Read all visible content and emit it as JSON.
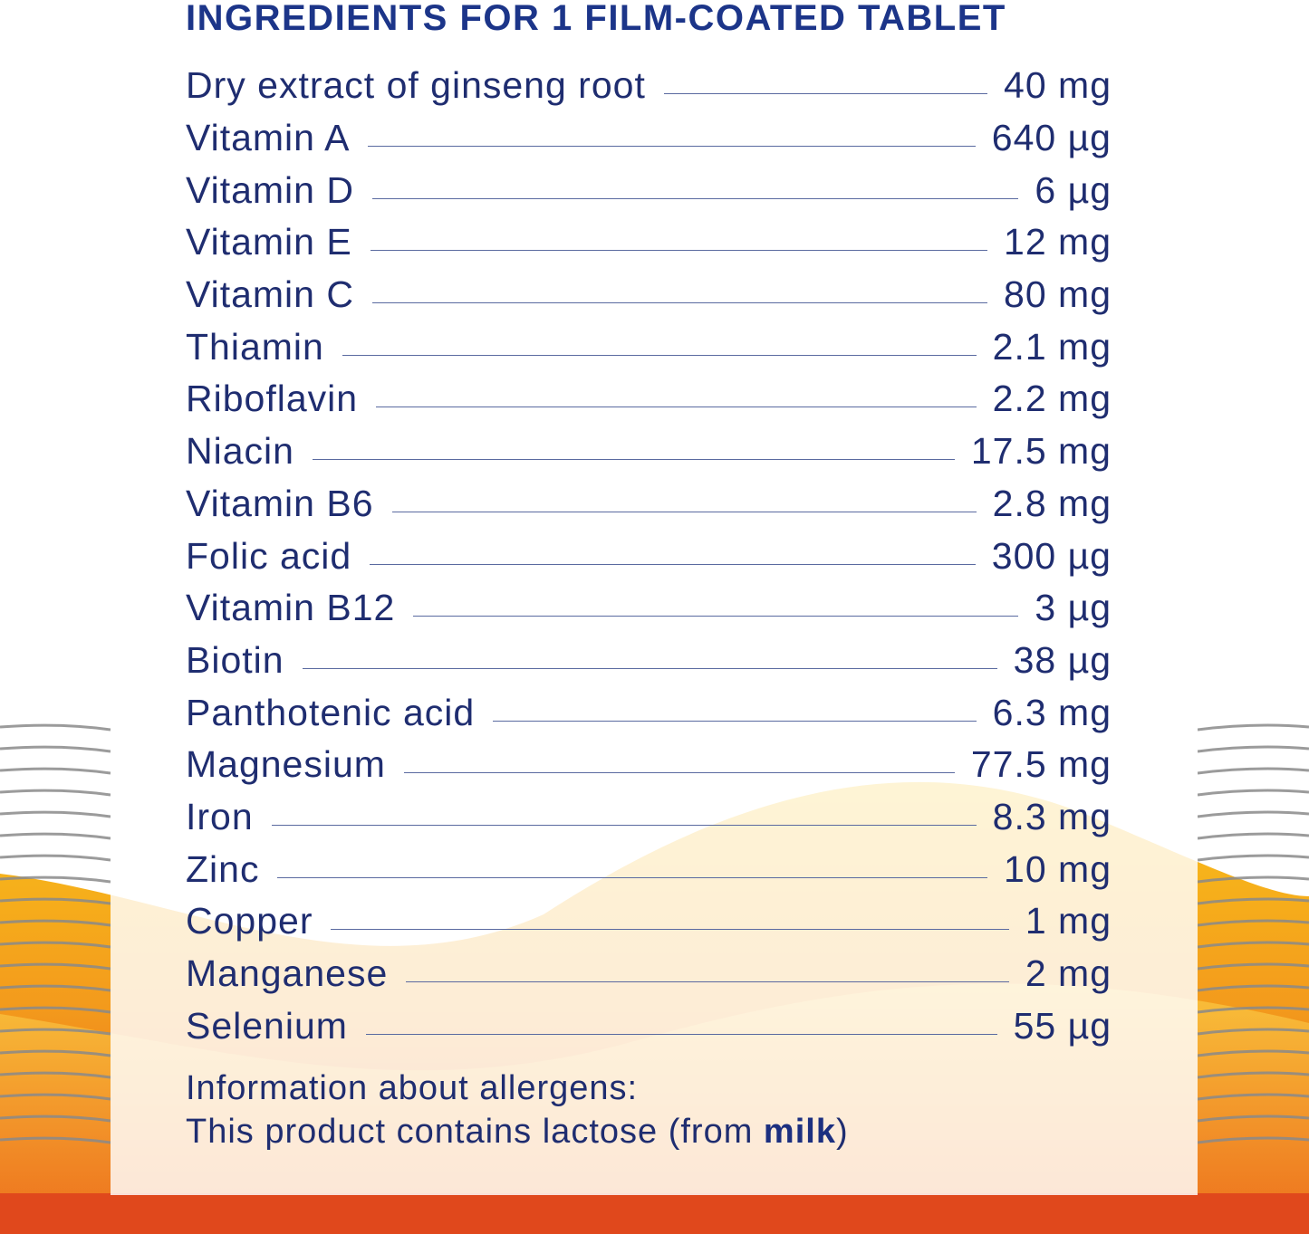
{
  "title": "INGREDIENTS FOR 1 FILM-COATED TABLET",
  "rows": [
    [
      "Dry extract of ginseng root",
      "40 mg"
    ],
    [
      "Vitamin A",
      "640 µg"
    ],
    [
      "Vitamin D",
      "6 µg"
    ],
    [
      "Vitamin E",
      "12 mg"
    ],
    [
      "Vitamin C",
      "80 mg"
    ],
    [
      "Thiamin",
      "2.1 mg"
    ],
    [
      "Riboflavin",
      "2.2 mg"
    ],
    [
      "Niacin",
      "17.5 mg"
    ],
    [
      "Vitamin B6",
      "2.8 mg"
    ],
    [
      "Folic acid",
      "300 µg"
    ],
    [
      "Vitamin B12",
      "3 µg"
    ],
    [
      "Biotin",
      "38 µg"
    ],
    [
      "Panthotenic acid",
      "6.3 mg"
    ],
    [
      "Magnesium",
      "77.5 mg"
    ],
    [
      "Iron",
      "8.3 mg"
    ],
    [
      "Zinc",
      "10 mg"
    ],
    [
      "Copper",
      "1 mg"
    ],
    [
      "Manganese",
      "2 mg"
    ],
    [
      "Selenium",
      "55 µg"
    ]
  ],
  "allergens": {
    "heading": "Information about allergens:",
    "text": "This product contains lactose (from ",
    "bold": "milk",
    "end": ")"
  }
}
